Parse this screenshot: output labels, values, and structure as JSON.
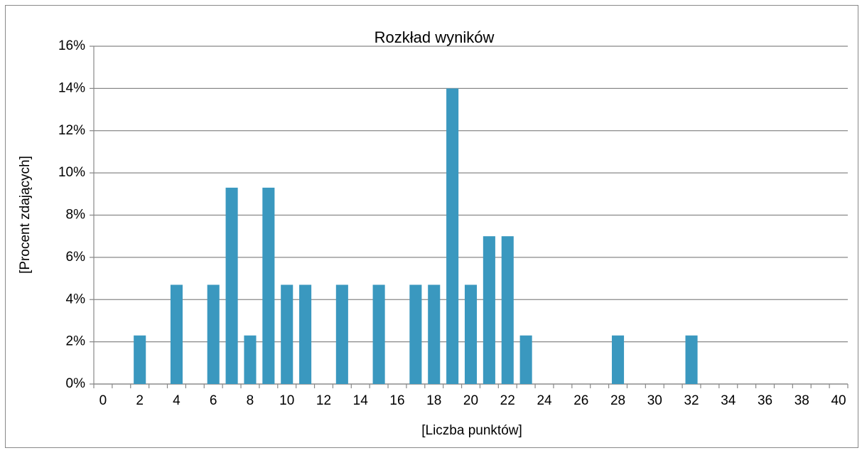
{
  "chart_data": {
    "type": "bar",
    "title": "Rozkład wyników",
    "xlabel": "[Liczba punktów]",
    "ylabel": "[Procent zdających]",
    "categories": [
      0,
      null,
      2,
      null,
      4,
      null,
      6,
      null,
      8,
      null,
      10,
      null,
      12,
      null,
      14,
      null,
      16,
      null,
      18,
      null,
      20,
      null,
      22,
      null,
      24,
      null,
      26,
      null,
      28,
      null,
      30,
      null,
      32,
      null,
      34,
      null,
      36,
      null,
      38,
      null,
      40
    ],
    "values": [
      0,
      0,
      2.3,
      0,
      4.7,
      0,
      4.7,
      9.3,
      2.3,
      9.3,
      4.7,
      4.7,
      0,
      4.7,
      0,
      4.7,
      0,
      4.7,
      4.7,
      14,
      4.7,
      7,
      7,
      2.3,
      0,
      0,
      0,
      0,
      2.3,
      0,
      0,
      0,
      2.3,
      0,
      0,
      0,
      0,
      0,
      0,
      0,
      0
    ],
    "color": "#3a98bf",
    "ylim": [
      0,
      16
    ],
    "yticks": [
      {
        "value": 0,
        "label": "0%"
      },
      {
        "value": 2,
        "label": "2%"
      },
      {
        "value": 4,
        "label": "4%"
      },
      {
        "value": 6,
        "label": "6%"
      },
      {
        "value": 8,
        "label": "8%"
      },
      {
        "value": 10,
        "label": "10%"
      },
      {
        "value": 12,
        "label": "12%"
      },
      {
        "value": 14,
        "label": "14%"
      },
      {
        "value": 16,
        "label": "16%"
      }
    ],
    "grid": true
  }
}
